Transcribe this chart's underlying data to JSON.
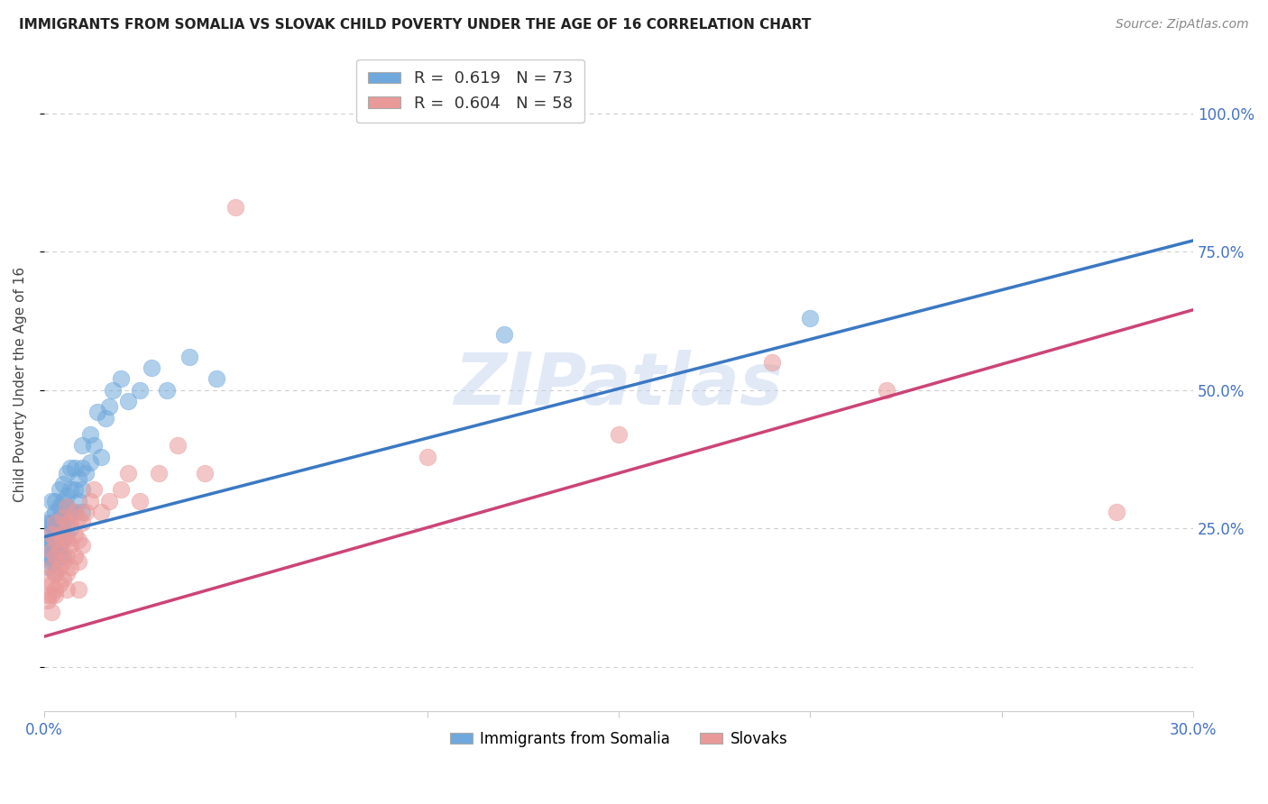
{
  "title": "IMMIGRANTS FROM SOMALIA VS SLOVAK CHILD POVERTY UNDER THE AGE OF 16 CORRELATION CHART",
  "source": "Source: ZipAtlas.com",
  "ylabel_left": "Child Poverty Under the Age of 16",
  "xlim": [
    0.0,
    0.3
  ],
  "ylim": [
    -0.08,
    1.1
  ],
  "blue_color": "#6fa8dc",
  "pink_color": "#ea9999",
  "blue_line_color": "#3b78c3",
  "pink_line_color": "#cc4477",
  "blue_R": 0.619,
  "blue_N": 73,
  "pink_R": 0.604,
  "pink_N": 58,
  "legend_label_blue": "Immigrants from Somalia",
  "legend_label_pink": "Slovaks",
  "watermark": "ZIPatlas",
  "blue_scatter_x": [
    0.001,
    0.001,
    0.001,
    0.001,
    0.001,
    0.001,
    0.002,
    0.002,
    0.002,
    0.002,
    0.002,
    0.002,
    0.002,
    0.002,
    0.003,
    0.003,
    0.003,
    0.003,
    0.003,
    0.003,
    0.003,
    0.003,
    0.003,
    0.003,
    0.004,
    0.004,
    0.004,
    0.004,
    0.004,
    0.004,
    0.004,
    0.005,
    0.005,
    0.005,
    0.005,
    0.005,
    0.005,
    0.006,
    0.006,
    0.006,
    0.006,
    0.006,
    0.007,
    0.007,
    0.007,
    0.007,
    0.008,
    0.008,
    0.008,
    0.009,
    0.009,
    0.01,
    0.01,
    0.01,
    0.01,
    0.011,
    0.012,
    0.012,
    0.013,
    0.014,
    0.015,
    0.016,
    0.017,
    0.018,
    0.02,
    0.022,
    0.025,
    0.028,
    0.032,
    0.038,
    0.045,
    0.12,
    0.2
  ],
  "blue_scatter_y": [
    0.2,
    0.22,
    0.24,
    0.26,
    0.18,
    0.21,
    0.19,
    0.22,
    0.25,
    0.27,
    0.3,
    0.23,
    0.2,
    0.26,
    0.17,
    0.2,
    0.22,
    0.25,
    0.28,
    0.3,
    0.23,
    0.19,
    0.26,
    0.24,
    0.2,
    0.23,
    0.26,
    0.29,
    0.32,
    0.22,
    0.27,
    0.2,
    0.23,
    0.27,
    0.3,
    0.33,
    0.25,
    0.24,
    0.27,
    0.31,
    0.35,
    0.29,
    0.25,
    0.28,
    0.32,
    0.36,
    0.28,
    0.32,
    0.36,
    0.3,
    0.34,
    0.32,
    0.36,
    0.4,
    0.28,
    0.35,
    0.37,
    0.42,
    0.4,
    0.46,
    0.38,
    0.45,
    0.47,
    0.5,
    0.52,
    0.48,
    0.5,
    0.54,
    0.5,
    0.56,
    0.52,
    0.6,
    0.63
  ],
  "pink_scatter_x": [
    0.001,
    0.001,
    0.001,
    0.002,
    0.002,
    0.002,
    0.002,
    0.002,
    0.002,
    0.003,
    0.003,
    0.003,
    0.003,
    0.003,
    0.003,
    0.004,
    0.004,
    0.004,
    0.004,
    0.005,
    0.005,
    0.005,
    0.005,
    0.006,
    0.006,
    0.006,
    0.006,
    0.006,
    0.006,
    0.007,
    0.007,
    0.007,
    0.008,
    0.008,
    0.008,
    0.009,
    0.009,
    0.009,
    0.009,
    0.01,
    0.01,
    0.011,
    0.012,
    0.013,
    0.015,
    0.017,
    0.02,
    0.022,
    0.025,
    0.03,
    0.035,
    0.042,
    0.05,
    0.1,
    0.15,
    0.19,
    0.22,
    0.28
  ],
  "pink_scatter_y": [
    0.13,
    0.16,
    0.12,
    0.15,
    0.18,
    0.13,
    0.21,
    0.1,
    0.24,
    0.14,
    0.17,
    0.2,
    0.23,
    0.13,
    0.26,
    0.15,
    0.18,
    0.21,
    0.24,
    0.16,
    0.19,
    0.23,
    0.27,
    0.17,
    0.2,
    0.23,
    0.26,
    0.29,
    0.14,
    0.18,
    0.22,
    0.26,
    0.2,
    0.24,
    0.28,
    0.19,
    0.23,
    0.27,
    0.14,
    0.22,
    0.26,
    0.28,
    0.3,
    0.32,
    0.28,
    0.3,
    0.32,
    0.35,
    0.3,
    0.35,
    0.4,
    0.35,
    0.83,
    0.38,
    0.42,
    0.55,
    0.5,
    0.28
  ],
  "blue_line_x": [
    0.0,
    0.3
  ],
  "blue_line_y": [
    0.235,
    0.77
  ],
  "pink_line_x": [
    0.0,
    0.3
  ],
  "pink_line_y": [
    0.055,
    0.645
  ],
  "ytick_positions": [
    0.0,
    0.25,
    0.5,
    0.75,
    1.0
  ],
  "ytick_labels_right": [
    "",
    "25.0%",
    "50.0%",
    "75.0%",
    "100.0%"
  ],
  "xtick_positions": [
    0.0,
    0.05,
    0.1,
    0.15,
    0.2,
    0.25,
    0.3
  ],
  "bg_color": "#ffffff",
  "grid_color": "#cccccc",
  "axis_label_color": "#4472c4",
  "title_color": "#222222",
  "source_color": "#888888"
}
